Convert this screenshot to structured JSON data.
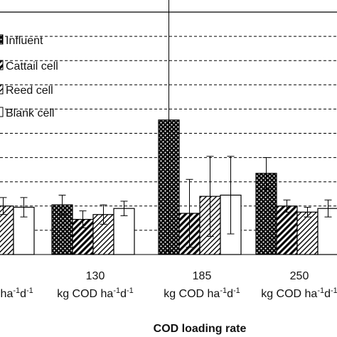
{
  "chart_data": {
    "type": "bar",
    "xlabel": "COD loading rate",
    "ylabel": "",
    "tick_unit": "kg COD ha",
    "tick_unit_tail": "-1",
    "tick_unit_tail2": "d",
    "tick_unit_tail3": "-1",
    "ylim": [
      0,
      20
    ],
    "grid": true,
    "legend_position": "top-left",
    "categories": [
      "",
      "130",
      "185",
      "250"
    ],
    "series": [
      {
        "name": "Influent",
        "pattern": "dots",
        "values": [
          4.2,
          4.1,
          11.1,
          6.7
        ]
      },
      {
        "name": "Cattail cell",
        "pattern": "stripe",
        "values": [
          4.3,
          2.9,
          3.4,
          4.0
        ]
      },
      {
        "name": "Reed cell",
        "pattern": "hatch",
        "values": [
          4.0,
          3.3,
          4.8,
          3.5
        ]
      },
      {
        "name": "Blank cell",
        "pattern": "blank",
        "values": [
          3.9,
          3.8,
          4.9,
          3.8
        ]
      }
    ],
    "errors": [
      [
        0.0,
        0.8,
        10.8,
        1.3
      ],
      [
        0.8,
        0.7,
        2.8,
        0.5
      ],
      [
        0.7,
        0.8,
        3.3,
        0.4
      ],
      [
        0.8,
        0.6,
        3.2,
        0.7
      ]
    ]
  }
}
